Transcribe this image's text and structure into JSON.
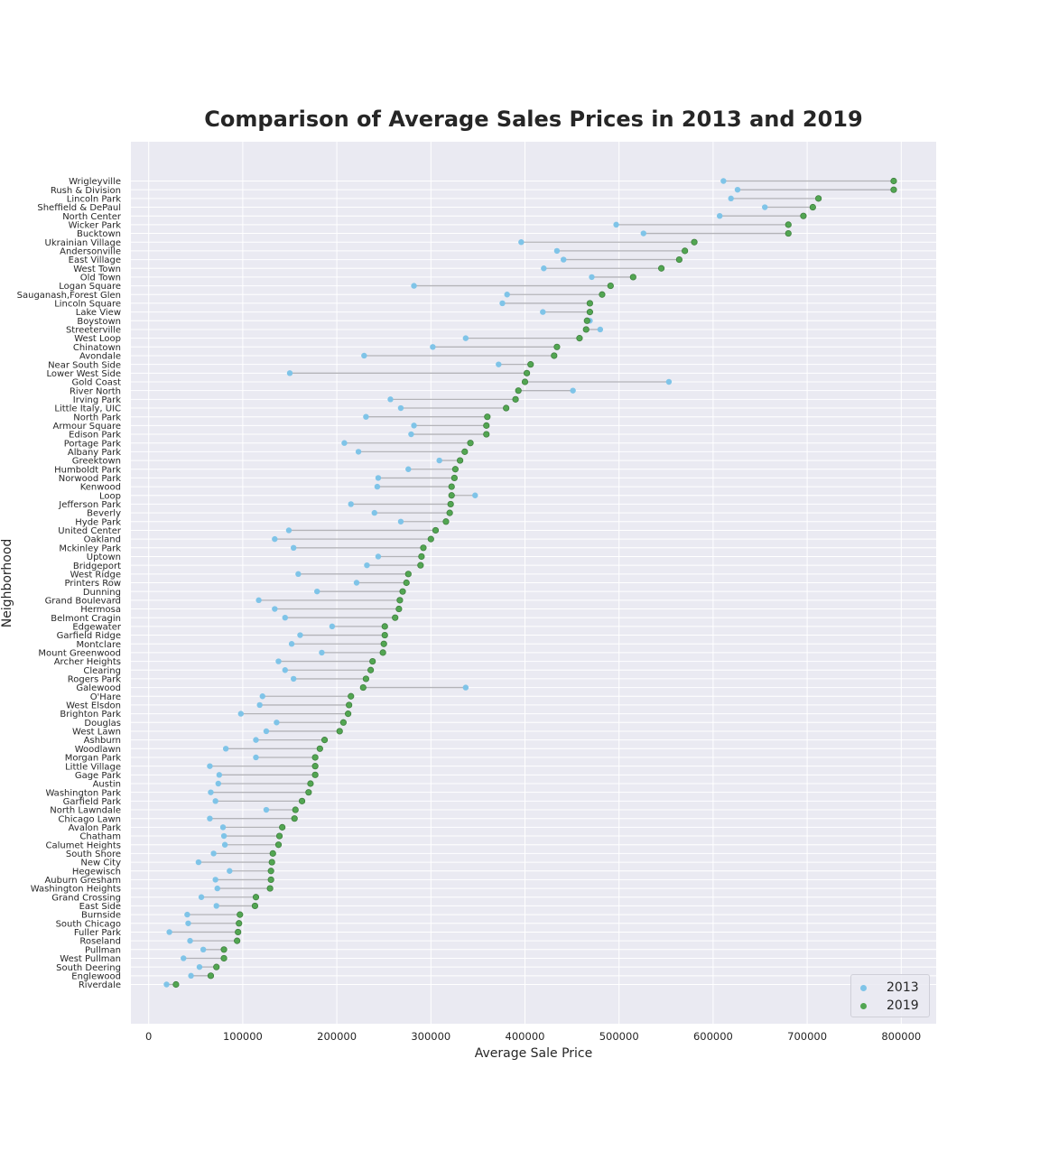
{
  "chart_data": {
    "type": "scatter",
    "title": "Comparison of Average Sales Prices in 2013 and 2019",
    "xlabel": "Average Sale Price",
    "ylabel": "Neighborhood",
    "xlim": [
      -18000,
      830000
    ],
    "xticks": [
      0,
      100000,
      200000,
      300000,
      400000,
      500000,
      600000,
      700000,
      800000
    ],
    "grid": true,
    "legend_position": "bottom-right",
    "categories": [
      "Wrigleyville",
      "Rush & Division",
      "Lincoln Park",
      "Sheffield & DePaul",
      "North Center",
      "Wicker Park",
      "Bucktown",
      "Ukrainian Village",
      "Andersonville",
      "East Village",
      "West Town",
      "Old Town",
      "Logan Square",
      "Sauganash,Forest Glen",
      "Lincoln Square",
      "Lake View",
      "Boystown",
      "Streeterville",
      "West Loop",
      "Chinatown",
      "Avondale",
      "Near South Side",
      "Lower West Side",
      "Gold Coast",
      "River North",
      "Irving Park",
      "Little Italy, UIC",
      "North Park",
      "Armour Square",
      "Edison Park",
      "Portage Park",
      "Albany Park",
      "Greektown",
      "Humboldt Park",
      "Norwood Park",
      "Kenwood",
      "Loop",
      "Jefferson Park",
      "Beverly",
      "Hyde Park",
      "United Center",
      "Oakland",
      "Mckinley Park",
      "Uptown",
      "Bridgeport",
      "West Ridge",
      "Printers Row",
      "Dunning",
      "Grand Boulevard",
      "Hermosa",
      "Belmont Cragin",
      "Edgewater",
      "Garfield Ridge",
      "Montclare",
      "Mount Greenwood",
      "Archer Heights",
      "Clearing",
      "Rogers Park",
      "Galewood",
      "O'Hare",
      "West Elsdon",
      "Brighton Park",
      "Douglas",
      "West Lawn",
      "Ashburn",
      "Woodlawn",
      "Morgan Park",
      "Little Village",
      "Gage Park",
      "Austin",
      "Washington Park",
      "Garfield Park",
      "North Lawndale",
      "Chicago Lawn",
      "Avalon Park",
      "Chatham",
      "Calumet Heights",
      "South Shore",
      "New City",
      "Hegewisch",
      "Auburn Gresham",
      "Washington Heights",
      "Grand Crossing",
      "East Side",
      "Burnside",
      "South Chicago",
      "Fuller Park",
      "Roseland",
      "Pullman",
      "West Pullman",
      "South Deering",
      "Englewood",
      "Riverdale"
    ],
    "series": [
      {
        "name": "2013",
        "color": "#7fc4e8",
        "values": [
          611000,
          626000,
          619000,
          655000,
          607000,
          497000,
          526000,
          396000,
          434000,
          441000,
          420000,
          471000,
          282000,
          381000,
          376000,
          419000,
          469000,
          480000,
          337000,
          302000,
          229000,
          372000,
          150000,
          553000,
          451000,
          257000,
          268000,
          231000,
          282000,
          279000,
          208000,
          223000,
          309000,
          276000,
          244000,
          243000,
          347000,
          215000,
          240000,
          268000,
          149000,
          134000,
          154000,
          244000,
          232000,
          159000,
          221000,
          179000,
          117000,
          134000,
          145000,
          195000,
          161000,
          152000,
          184000,
          138000,
          145000,
          154000,
          337000,
          121000,
          118000,
          98000,
          136000,
          125000,
          114000,
          82000,
          114000,
          65000,
          75000,
          74000,
          66000,
          71000,
          125000,
          65000,
          79000,
          80000,
          81000,
          69000,
          53000,
          86000,
          71000,
          73000,
          56000,
          72000,
          41000,
          42000,
          22000,
          44000,
          58000,
          37000,
          54000,
          45000,
          19000
        ]
      },
      {
        "name": "2019",
        "color": "#52a652",
        "values": [
          792000,
          792000,
          712000,
          706000,
          696000,
          680000,
          680000,
          580000,
          570000,
          564000,
          545000,
          515000,
          491000,
          482000,
          469000,
          469000,
          466000,
          465000,
          458000,
          434000,
          431000,
          406000,
          402000,
          400000,
          393000,
          390000,
          380000,
          360000,
          359000,
          359000,
          342000,
          336000,
          331000,
          326000,
          325000,
          322000,
          322000,
          321000,
          320000,
          316000,
          305000,
          300000,
          292000,
          290000,
          289000,
          276000,
          274000,
          270000,
          267000,
          266000,
          262000,
          251000,
          251000,
          250000,
          249000,
          238000,
          236000,
          231000,
          228000,
          215000,
          213000,
          212000,
          207000,
          203000,
          187000,
          182000,
          177000,
          177000,
          177000,
          172000,
          170000,
          163000,
          156000,
          155000,
          142000,
          139000,
          138000,
          132000,
          131000,
          130000,
          130000,
          129000,
          114000,
          113000,
          97000,
          96000,
          95000,
          94000,
          80000,
          80000,
          72000,
          66000,
          29000
        ]
      }
    ]
  }
}
